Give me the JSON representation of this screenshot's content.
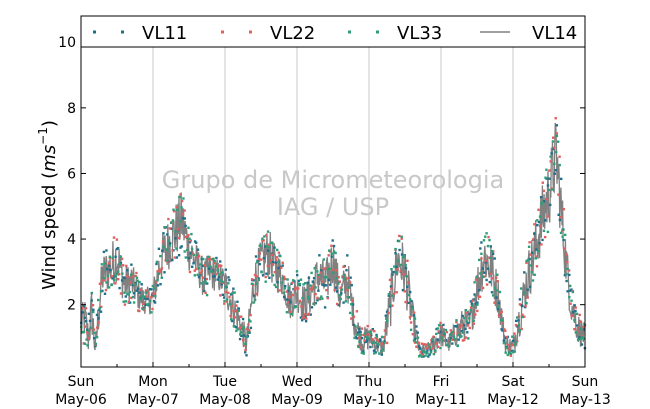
{
  "chart_data": {
    "type": "line",
    "title": "",
    "ylabel": "Wind speed (m s⁻¹)",
    "ylabel_parts": {
      "main": "Wind speed (",
      "unit": "ms",
      "exp": "−1",
      "close": ")"
    },
    "xlabel": "",
    "xlim": [
      "2012-05-06",
      "2012-05-13"
    ],
    "ylim": [
      0.1,
      10.8
    ],
    "grid": "vertical",
    "yticks": [
      2,
      4,
      6,
      8,
      10
    ],
    "xticks": [
      {
        "day": "Sun",
        "date": "May-06"
      },
      {
        "day": "Mon",
        "date": "May-07"
      },
      {
        "day": "Tue",
        "date": "May-08"
      },
      {
        "day": "Wed",
        "date": "May-09"
      },
      {
        "day": "Thu",
        "date": "May-10"
      },
      {
        "day": "Fri",
        "date": "May-11"
      },
      {
        "day": "Sat",
        "date": "May-12"
      },
      {
        "day": "Sun",
        "date": "May-13"
      }
    ],
    "legend_position": "top",
    "watermark": [
      "Grupo de Micrometeorologia",
      "IAG / USP"
    ],
    "series": [
      {
        "name": "VL11",
        "style": "dots",
        "color": "#1f6f8b"
      },
      {
        "name": "VL22",
        "style": "dots",
        "color": "#e0605e"
      },
      {
        "name": "VL33",
        "style": "dots",
        "color": "#2e9e7a"
      },
      {
        "name": "VL14",
        "style": "line",
        "color": "#808080"
      }
    ],
    "x_day_offsets": [
      0.0,
      0.05,
      0.1,
      0.15,
      0.2,
      0.25,
      0.3,
      0.4,
      0.5,
      0.6,
      0.7,
      0.8,
      0.9,
      1.0,
      1.1,
      1.2,
      1.3,
      1.4,
      1.5,
      1.6,
      1.7,
      1.8,
      1.9,
      2.0,
      2.1,
      2.2,
      2.3,
      2.4,
      2.5,
      2.6,
      2.7,
      2.8,
      2.9,
      3.0,
      3.1,
      3.2,
      3.3,
      3.4,
      3.5,
      3.6,
      3.7,
      3.8,
      3.9,
      4.0,
      4.1,
      4.2,
      4.3,
      4.4,
      4.5,
      4.6,
      4.7,
      4.8,
      4.9,
      5.0,
      5.1,
      5.2,
      5.3,
      5.4,
      5.5,
      5.6,
      5.7,
      5.8,
      5.9,
      6.0,
      6.1,
      6.2,
      6.3,
      6.4,
      6.5,
      6.6,
      6.7,
      6.8,
      6.9,
      7.0
    ],
    "y_center": [
      1.3,
      1.6,
      1.0,
      1.8,
      0.6,
      1.9,
      2.9,
      3.1,
      3.5,
      2.6,
      2.7,
      2.3,
      2.1,
      2.2,
      3.3,
      3.8,
      4.2,
      4.6,
      3.7,
      3.3,
      2.8,
      3.0,
      2.9,
      2.6,
      2.0,
      1.5,
      0.8,
      2.6,
      3.3,
      3.6,
      3.1,
      2.8,
      2.1,
      2.4,
      2.0,
      2.4,
      2.9,
      2.6,
      3.4,
      2.2,
      2.8,
      1.5,
      0.9,
      1.0,
      0.8,
      0.7,
      2.1,
      3.4,
      3.0,
      1.6,
      0.6,
      0.6,
      0.8,
      1.1,
      0.8,
      1.1,
      1.4,
      1.4,
      2.5,
      3.5,
      3.1,
      2.2,
      0.8,
      0.7,
      1.7,
      2.8,
      3.6,
      4.6,
      5.4,
      6.6,
      4.1,
      2.1,
      1.3,
      1.0
    ],
    "y_spread": [
      0.6,
      0.7,
      0.6,
      0.8,
      0.4,
      0.7,
      0.7,
      0.7,
      0.8,
      0.6,
      0.6,
      0.5,
      0.4,
      0.5,
      0.7,
      0.8,
      0.9,
      0.9,
      0.7,
      0.6,
      0.6,
      0.6,
      0.5,
      0.6,
      0.6,
      0.5,
      0.4,
      0.7,
      0.7,
      0.8,
      0.7,
      0.6,
      0.6,
      0.6,
      0.6,
      0.7,
      0.7,
      0.7,
      0.8,
      0.6,
      0.7,
      0.5,
      0.4,
      0.4,
      0.3,
      0.3,
      0.8,
      0.8,
      0.9,
      0.6,
      0.2,
      0.2,
      0.3,
      0.4,
      0.3,
      0.4,
      0.5,
      0.5,
      0.7,
      0.9,
      0.8,
      0.6,
      0.3,
      0.3,
      0.6,
      0.8,
      0.9,
      1.0,
      1.1,
      1.2,
      0.9,
      0.6,
      0.5,
      0.4
    ]
  }
}
